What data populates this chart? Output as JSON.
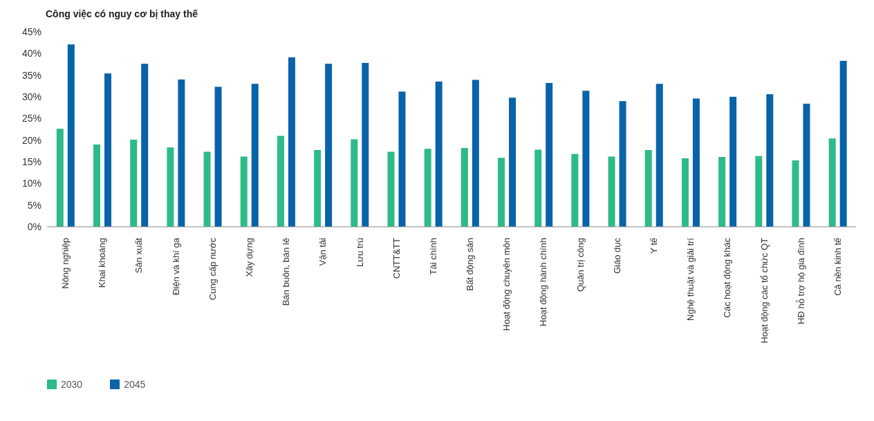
{
  "chart_data": {
    "type": "bar",
    "title": "Công việc có nguy cơ bị thay thế",
    "categories": [
      "Nông nghiệp",
      "Khai khoáng",
      "Sản xuất",
      "Điện và khí ga",
      "Cung cấp nước",
      "Xây dựng",
      "Bán buôn, bán lẻ",
      "Vận tải",
      "Lưu trú",
      "CNTT&TT",
      "Tài chính",
      "Bất động sản",
      "Hoạt động chuyên môn",
      "Hoạt động hành chính",
      "Quản trị công",
      "Giáo dục",
      "Y tế",
      "Nghệ thuật và giải trí",
      "Các hoạt động khác",
      "Hoạt động các tổ chức QT",
      "HĐ hỗ trợ hộ gia đình",
      "Cả nền kinh tế"
    ],
    "series": [
      {
        "name": "2030",
        "color": "#2dbb87",
        "values": [
          22.6,
          19,
          20.1,
          18.3,
          17.3,
          16.2,
          21,
          17.7,
          20.2,
          17.3,
          18,
          18.2,
          15.9,
          17.8,
          16.8,
          16.2,
          17.7,
          15.8,
          16.1,
          16.3,
          15.3,
          20.4
        ]
      },
      {
        "name": "2045",
        "color": "#0863a8",
        "values": [
          42.1,
          35.4,
          37.6,
          34,
          32.3,
          33,
          39.1,
          37.6,
          37.8,
          31.2,
          33.5,
          33.9,
          29.8,
          33.2,
          31.4,
          29,
          33,
          29.6,
          30,
          30.6,
          28.4,
          38.3
        ]
      }
    ],
    "ylim": [
      0,
      45
    ],
    "yticks": [
      {
        "value": 0,
        "label": "0%"
      },
      {
        "value": 5,
        "label": "5%"
      },
      {
        "value": 10,
        "label": "10%"
      },
      {
        "value": 15,
        "label": "15%"
      },
      {
        "value": 20,
        "label": "20%"
      },
      {
        "value": 25,
        "label": "25%"
      },
      {
        "value": 30,
        "label": "30%"
      },
      {
        "value": 35,
        "label": "35%"
      },
      {
        "value": 40,
        "label": "40%"
      },
      {
        "value": 45,
        "label": "45%"
      }
    ],
    "legend": "bottom left",
    "grid": false
  }
}
